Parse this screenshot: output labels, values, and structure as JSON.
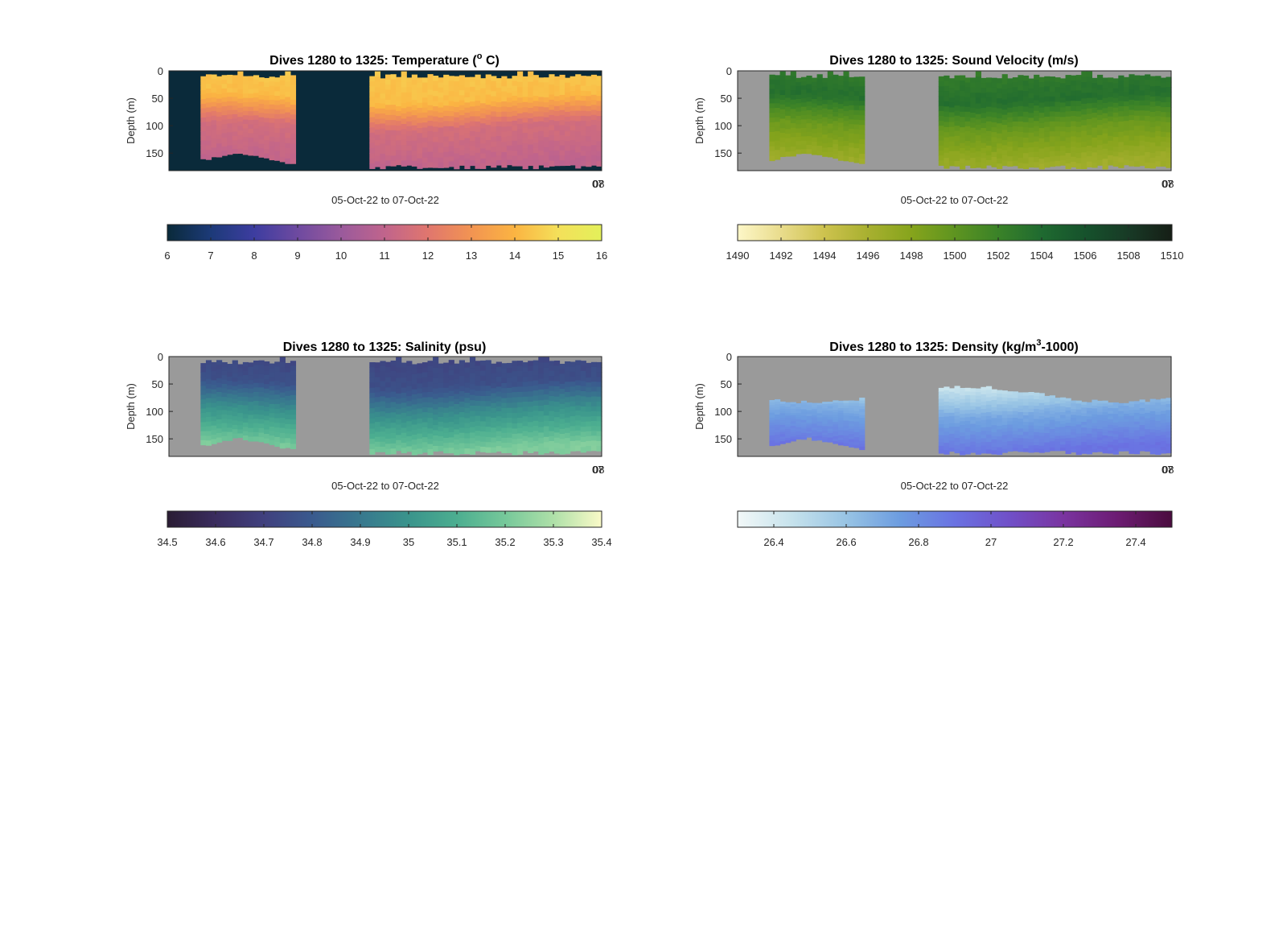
{
  "chart_data": [
    {
      "type": "heatmap",
      "title": "Dives 1280 to 1325: Temperature (° C)",
      "title_parts": {
        "pre": "Dives 1280 to 1325: Temperature (",
        "sup": "o",
        "post": " C)"
      },
      "xlabel": "05-Oct-22 to 07-Oct-22",
      "ylabel": "Depth (m)",
      "x_tick_labels": [
        "07",
        "08"
      ],
      "y_ticks": [
        0,
        50,
        100,
        150
      ],
      "ylim": [
        0,
        182
      ],
      "background": "#0a2a3a",
      "colorbar": {
        "min": 6,
        "max": 16,
        "ticks": [
          6,
          7,
          8,
          9,
          10,
          11,
          12,
          13,
          14,
          15,
          16
        ],
        "tick_labels": [
          "6",
          "7",
          "8",
          "9",
          "10",
          "11",
          "12",
          "13",
          "14",
          "15",
          "16"
        ],
        "colors": [
          "#0a2a3a",
          "#1c3a78",
          "#3d3da0",
          "#6e4aa0",
          "#9a5a9c",
          "#c0648c",
          "#e0766e",
          "#f29452",
          "#fbb442",
          "#f4e05a",
          "#e3f05a"
        ]
      },
      "profile": {
        "top": 14.4,
        "d50": 14.2,
        "d100": 11.6,
        "bottom": 11.0
      }
    },
    {
      "type": "heatmap",
      "title": "Dives 1280 to 1325: Sound Velocity (m/s)",
      "title_parts": {
        "pre": "Dives 1280 to 1325: Sound Velocity (m/s)",
        "sup": "",
        "post": ""
      },
      "xlabel": "05-Oct-22 to 07-Oct-22",
      "ylabel": "Depth (m)",
      "x_tick_labels": [
        "07",
        "08"
      ],
      "y_ticks": [
        0,
        50,
        100,
        150
      ],
      "ylim": [
        0,
        182
      ],
      "background": "#9a9a9a",
      "colorbar": {
        "min": 1490,
        "max": 1510,
        "ticks": [
          1490,
          1492,
          1494,
          1496,
          1498,
          1500,
          1502,
          1504,
          1506,
          1508,
          1510
        ],
        "tick_labels": [
          "1490",
          "1492",
          "1494",
          "1496",
          "1498",
          "1500",
          "1502",
          "1504",
          "1506",
          "1508",
          "1510"
        ],
        "colors": [
          "#fdf7c8",
          "#e9dc8c",
          "#cdc24e",
          "#a8b030",
          "#86a41c",
          "#5e9420",
          "#3a8228",
          "#1f6a30",
          "#16522c",
          "#183a26",
          "#161e16"
        ]
      },
      "profile": {
        "top": 1502.6,
        "d50": 1503.6,
        "d100": 1499.5,
        "bottom": 1496.5
      }
    },
    {
      "type": "heatmap",
      "title": "Dives 1280 to 1325: Salinity (psu)",
      "title_parts": {
        "pre": "Dives 1280 to 1325: Salinity (psu)",
        "sup": "",
        "post": ""
      },
      "xlabel": "05-Oct-22 to 07-Oct-22",
      "ylabel": "Depth (m)",
      "x_tick_labels": [
        "07",
        "08"
      ],
      "y_ticks": [
        0,
        50,
        100,
        150
      ],
      "ylim": [
        0,
        182
      ],
      "background": "#9a9a9a",
      "colorbar": {
        "min": 34.5,
        "max": 35.4,
        "ticks": [
          34.5,
          34.6,
          34.7,
          34.8,
          34.9,
          35.0,
          35.1,
          35.2,
          35.3,
          35.4
        ],
        "tick_labels": [
          "34.5",
          "34.6",
          "34.7",
          "34.8",
          "34.9",
          "35",
          "35.1",
          "35.2",
          "35.3",
          "35.4"
        ],
        "colors": [
          "#2a1c34",
          "#3a2c5e",
          "#40407e",
          "#3a5a8e",
          "#38788e",
          "#3a948c",
          "#4cae90",
          "#76c89a",
          "#aee0a8",
          "#fafac8"
        ]
      },
      "profile": {
        "top": 34.72,
        "d50": 34.76,
        "d100": 34.98,
        "bottom": 35.22
      }
    },
    {
      "type": "heatmap",
      "title": "Dives 1280 to 1325: Density (kg/m³-1000)",
      "title_parts": {
        "pre": "Dives 1280 to 1325: Density (kg/m",
        "sup": "3",
        "post": "-1000)"
      },
      "xlabel": "05-Oct-22 to 07-Oct-22",
      "ylabel": "Depth (m)",
      "x_tick_labels": [
        "07",
        "08"
      ],
      "y_ticks": [
        0,
        50,
        100,
        150
      ],
      "ylim": [
        0,
        182
      ],
      "background": "#9a9a9a",
      "colorbar": {
        "min": 26.3,
        "max": 27.5,
        "ticks": [
          26.4,
          26.6,
          26.8,
          27.0,
          27.2,
          27.4
        ],
        "tick_labels": [
          "26.4",
          "26.6",
          "26.8",
          "27",
          "27.2",
          "27.4"
        ],
        "colors": [
          "#f2f8f8",
          "#c6e2ec",
          "#98c4e4",
          "#6c9ce0",
          "#6a72e2",
          "#7050c8",
          "#7a34a0",
          "#6c1c72",
          "#4a0c3e"
        ]
      },
      "profile": {
        "top": 26.42,
        "d50": 26.45,
        "d100": 26.7,
        "bottom": 26.9
      }
    }
  ]
}
